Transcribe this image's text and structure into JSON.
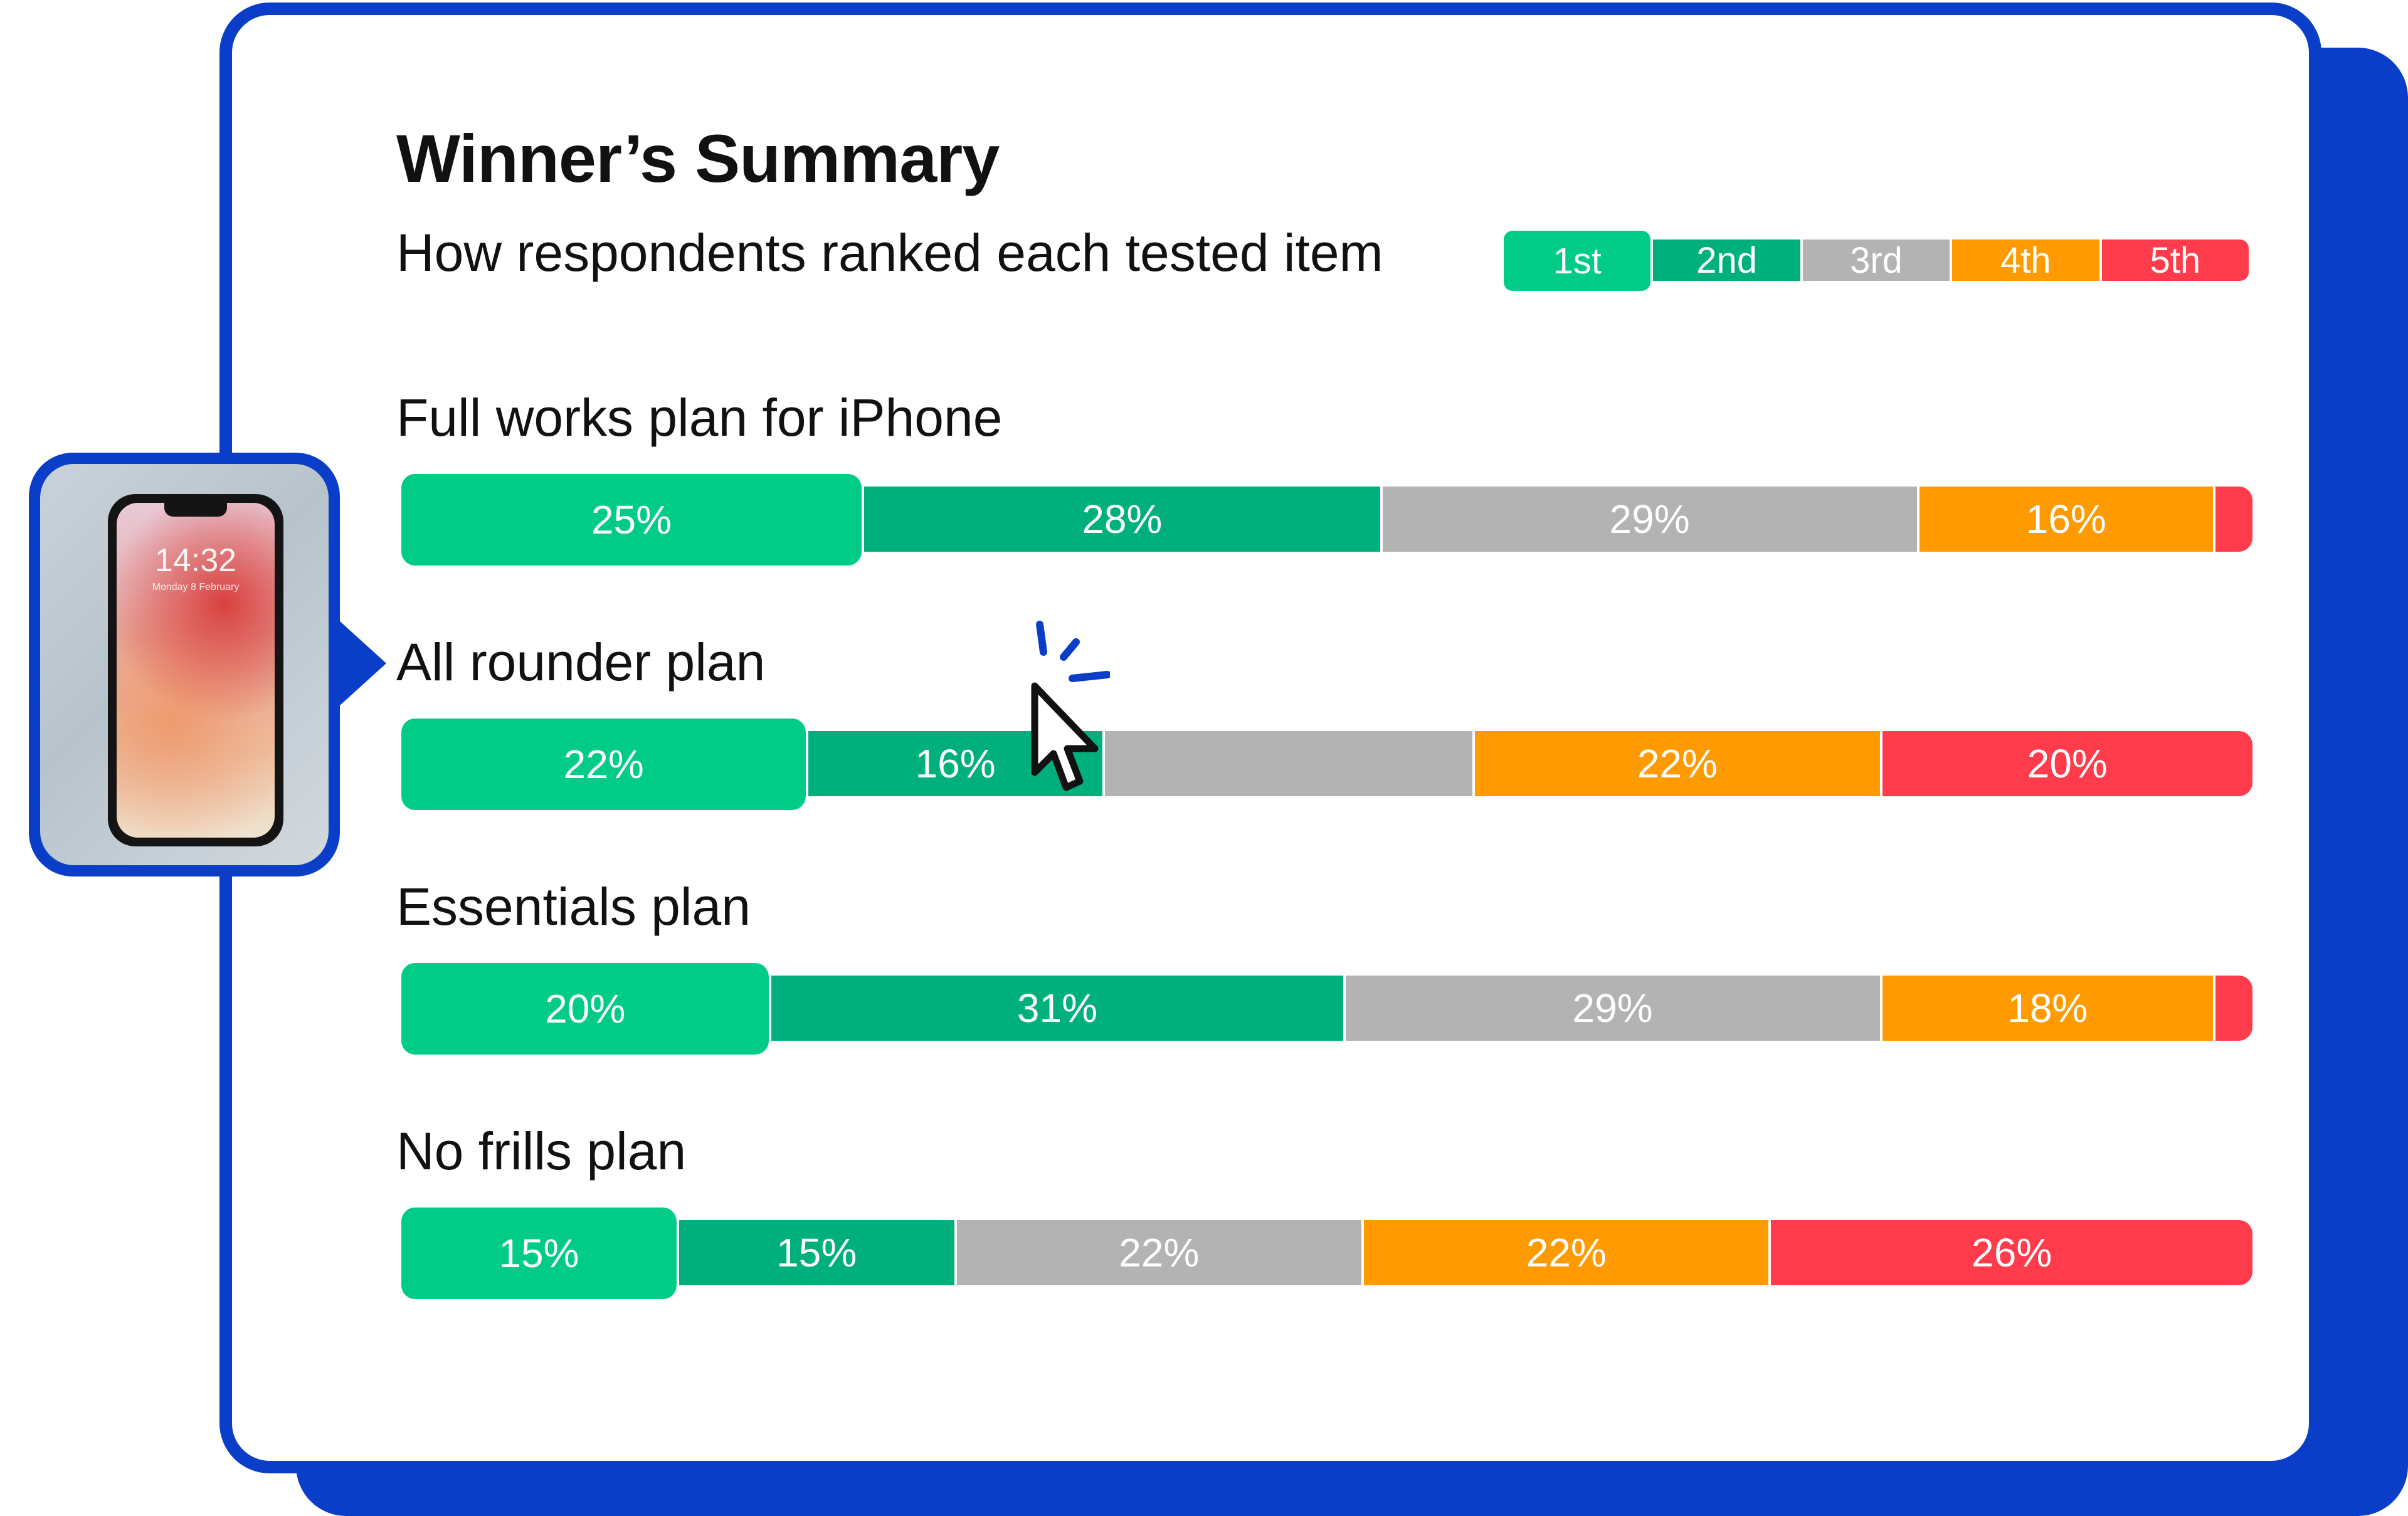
{
  "colors": {
    "brand_blue": "#0a3ec9",
    "rank_1st": "#00cc88",
    "rank_2nd": "#00b07c",
    "rank_3rd": "#b3b3b3",
    "rank_4th": "#ff9a00",
    "rank_5th": "#ff3b4c"
  },
  "phone": {
    "time": "14:32",
    "date": "Monday 8 February"
  },
  "icons": {
    "cursor": "mouse-pointer-icon",
    "click": "click-burst-icon",
    "phone": "smartphone-photo"
  },
  "chart_data": {
    "type": "bar",
    "orientation": "horizontal-stacked-100",
    "title": "Winner’s Summary",
    "subtitle": "How respondents ranked each tested item",
    "legend_position": "top-right",
    "legend": [
      "1st",
      "2nd",
      "3rd",
      "4th",
      "5th"
    ],
    "categories": [
      "Full works plan for iPhone",
      "All rounder plan",
      "Essentials plan",
      "No frills plan"
    ],
    "series": [
      {
        "name": "1st",
        "values": [
          25,
          22,
          20,
          15
        ],
        "labels": [
          "25%",
          "22%",
          "20%",
          "15%"
        ]
      },
      {
        "name": "2nd",
        "values": [
          28,
          16,
          31,
          15
        ],
        "labels": [
          "28%",
          "16%",
          "31%",
          "15%"
        ]
      },
      {
        "name": "3rd",
        "values": [
          29,
          20,
          29,
          22
        ],
        "labels": [
          "29%",
          "",
          "29%",
          "22%"
        ]
      },
      {
        "name": "4th",
        "values": [
          16,
          22,
          18,
          22
        ],
        "labels": [
          "16%",
          "22%",
          "18%",
          "22%"
        ]
      },
      {
        "name": "5th",
        "values": [
          2,
          20,
          2,
          26
        ],
        "labels": [
          "",
          "20%",
          "",
          "26%"
        ]
      }
    ],
    "xlim": [
      0,
      100
    ]
  }
}
